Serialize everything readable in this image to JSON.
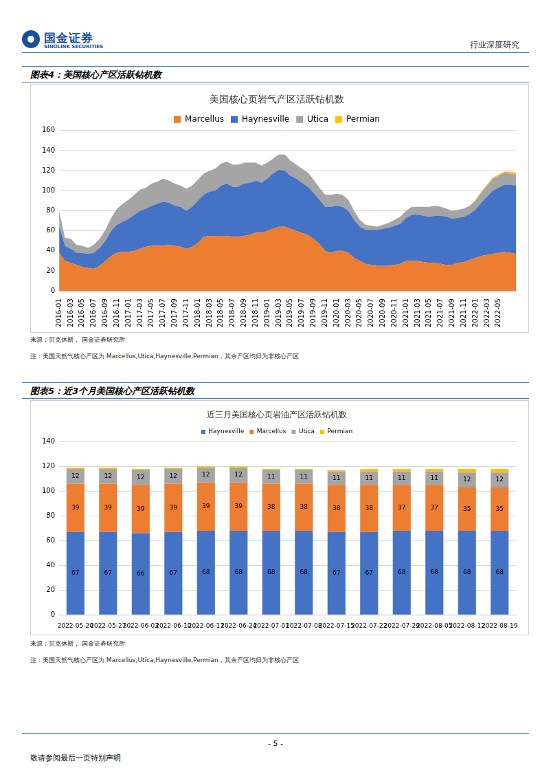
{
  "header": {
    "company": "国金证券",
    "company_en": "SINOLINK SECURITIES",
    "report_type": "行业深度研究"
  },
  "figures": [
    {
      "caption": "图表4：美国核心产区活跃钻机数",
      "source": "来源：贝克休斯， 国金证券研究所",
      "note": "注：美国天然气核心产区为 Marcellus,Utica,Haynesville,Permian，其余产区均归为非核心产区"
    },
    {
      "caption": "图表5：近3个月美国核心产区活跃钻机数",
      "source": "来源：贝克休斯， 国金证券研究所",
      "note": "注：美国天然气核心产区为 Marcellus,Utica,Haynesville,Permian，其余产区均归为非核心产区"
    }
  ],
  "chart_data": [
    {
      "type": "area",
      "title": "美国核心页岩气产区活跃钻机数",
      "stacked": true,
      "grid": true,
      "legend": "top",
      "categories": [
        "2016-01",
        null,
        "2016-03",
        null,
        "2016-05",
        null,
        "2016-07",
        null,
        "2016-09",
        null,
        "2016-11",
        null,
        "2017-01",
        null,
        "2017-03",
        null,
        "2017-05",
        null,
        "2017-07",
        null,
        "2017-09",
        null,
        "2017-11",
        null,
        "2018-01",
        null,
        "2018-03",
        null,
        "2018-05",
        null,
        "2018-07",
        null,
        "2018-09",
        null,
        "2018-11",
        null,
        "2019-01",
        null,
        "2019-03",
        null,
        "2019-05",
        null,
        "2019-07",
        null,
        "2019-09",
        null,
        "2019-11",
        null,
        "2020-01",
        null,
        "2020-03",
        null,
        "2020-05",
        null,
        "2020-07",
        null,
        "2020-09",
        null,
        "2020-11",
        null,
        "2021-01",
        null,
        "2021-03",
        null,
        "2021-05",
        null,
        "2021-07",
        null,
        "2021-09",
        null,
        "2021-11",
        null,
        "2022-01",
        null,
        "2022-03",
        null,
        "2022-05",
        null,
        null,
        null
      ],
      "series": [
        {
          "name": "Marcellus",
          "color": "#ED7D31",
          "values": [
            38,
            30,
            28,
            26,
            24,
            23,
            22,
            25,
            30,
            35,
            38,
            39,
            39,
            40,
            42,
            44,
            45,
            45,
            45,
            46,
            45,
            44,
            42,
            44,
            48,
            54,
            55,
            55,
            55,
            55,
            54,
            54,
            55,
            56,
            58,
            58,
            60,
            62,
            64,
            64,
            62,
            60,
            58,
            56,
            52,
            47,
            40,
            38,
            40,
            40,
            38,
            33,
            30,
            27,
            26,
            25,
            25,
            25,
            26,
            27,
            30,
            30,
            30,
            29,
            28,
            28,
            27,
            26,
            26,
            28,
            29,
            31,
            33,
            35,
            36,
            37,
            38,
            39,
            38,
            37
          ]
        },
        {
          "name": "Haynesville",
          "color": "#4472C4",
          "values": [
            27,
            15,
            14,
            12,
            14,
            14,
            16,
            18,
            20,
            25,
            28,
            30,
            33,
            36,
            38,
            38,
            40,
            42,
            44,
            42,
            40,
            40,
            38,
            40,
            42,
            42,
            44,
            45,
            50,
            52,
            50,
            50,
            52,
            52,
            52,
            50,
            52,
            55,
            57,
            56,
            53,
            52,
            50,
            48,
            46,
            44,
            44,
            46,
            45,
            44,
            42,
            38,
            34,
            34,
            35,
            36,
            37,
            38,
            39,
            40,
            43,
            46,
            46,
            46,
            46,
            47,
            48,
            48,
            46,
            45,
            45,
            46,
            48,
            53,
            58,
            63,
            65,
            67,
            68,
            68
          ]
        },
        {
          "name": "Utica",
          "color": "#A5A5A5",
          "values": [
            15,
            8,
            10,
            8,
            7,
            6,
            8,
            9,
            11,
            13,
            16,
            18,
            19,
            20,
            21,
            21,
            22,
            22,
            23,
            22,
            22,
            21,
            22,
            21,
            21,
            21,
            21,
            22,
            22,
            22,
            22,
            22,
            21,
            20,
            18,
            17,
            16,
            15,
            15,
            16,
            15,
            14,
            14,
            14,
            13,
            12,
            12,
            12,
            12,
            12,
            11,
            9,
            7,
            5,
            4,
            3,
            4,
            5,
            6,
            7,
            7,
            8,
            8,
            9,
            10,
            10,
            9,
            8,
            8,
            8,
            8,
            8,
            9,
            10,
            11,
            12,
            12,
            12,
            11,
            11
          ]
        },
        {
          "name": "Permian",
          "color": "#FFC000",
          "values": [
            0,
            0,
            0,
            0,
            0,
            0,
            0,
            0,
            0,
            0,
            0,
            0,
            0,
            0,
            0,
            0,
            0,
            0,
            0,
            0,
            0,
            0,
            0,
            0,
            0,
            0,
            0,
            0,
            0,
            0,
            0,
            0,
            0,
            0,
            0,
            0,
            0,
            0,
            0,
            0,
            0,
            0,
            0,
            0,
            0,
            0,
            0,
            0,
            0,
            0,
            0,
            0,
            0,
            0,
            0,
            0,
            0,
            0,
            0,
            0,
            0,
            0,
            0,
            0,
            0,
            0,
            0,
            0,
            0,
            0,
            0,
            0,
            1,
            1,
            1,
            1,
            1,
            1,
            2,
            2
          ]
        }
      ],
      "ylim": [
        0,
        160
      ],
      "yticks": [
        0,
        20,
        40,
        60,
        80,
        100,
        120,
        140,
        160
      ]
    },
    {
      "type": "bar",
      "title": "近三月美国核心页岩油产区活跃钻机数",
      "stacked": true,
      "grid": true,
      "legend": "top",
      "data_labels": true,
      "categories": [
        "2022-05-20",
        "2022-05-27",
        "2022-06-03",
        "2022-06-10",
        "2022-06-17",
        "2022-06-24",
        "2022-07-01",
        "2022-07-08",
        "2022-07-15",
        "2022-07-22",
        "2022-07-29",
        "2022-08-05",
        "2022-08-12",
        "2022-08-19"
      ],
      "series": [
        {
          "name": "Haynesville",
          "color": "#4472C4",
          "values": [
            67,
            67,
            66,
            67,
            68,
            68,
            68,
            68,
            67,
            67,
            68,
            68,
            68,
            68
          ]
        },
        {
          "name": "Marcellus",
          "color": "#ED7D31",
          "values": [
            39,
            39,
            39,
            39,
            39,
            39,
            38,
            38,
            38,
            38,
            37,
            37,
            35,
            35
          ]
        },
        {
          "name": "Utica",
          "color": "#A5A5A5",
          "values": [
            12,
            12,
            12,
            12,
            12,
            12,
            11,
            11,
            11,
            11,
            11,
            11,
            12,
            12
          ]
        },
        {
          "name": "Permian",
          "color": "#FFC000",
          "data_labels": false,
          "values": [
            1,
            1,
            1,
            1,
            1,
            1,
            1,
            1,
            1,
            2,
            2,
            2,
            3,
            3
          ]
        }
      ],
      "ylim": [
        0,
        140
      ],
      "yticks": [
        0,
        20,
        40,
        60,
        80,
        100,
        120,
        140
      ]
    }
  ],
  "footer": {
    "page": "- 5 -",
    "disclaimer": "敬请参阅最后一页特别声明"
  }
}
